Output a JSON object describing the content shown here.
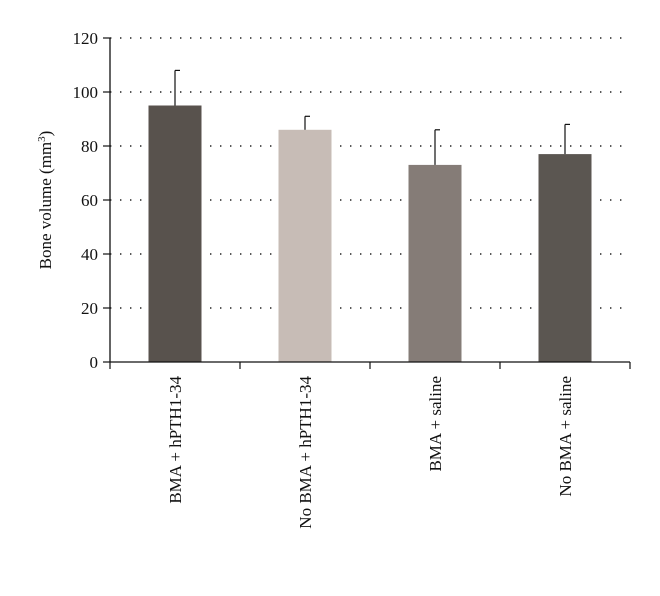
{
  "chart_data": {
    "type": "bar",
    "ylabel": "Bone volume (mm",
    "ylabel_sup": "3",
    "ylabel_close": ")",
    "ylim": [
      0,
      120
    ],
    "yticks": [
      0,
      20,
      40,
      60,
      80,
      100,
      120
    ],
    "grid": "horizontal-dotted",
    "categories": [
      "BMA + hPTH1-34",
      "No BMA + hPTH1-34",
      "BMA + saline",
      "No BMA + saline"
    ],
    "values": [
      95,
      86,
      73,
      77
    ],
    "error_upper": [
      108,
      91,
      86,
      88
    ],
    "bar_colors": [
      "#58524d",
      "#c7bcb6",
      "#857c77",
      "#5b5651"
    ]
  }
}
